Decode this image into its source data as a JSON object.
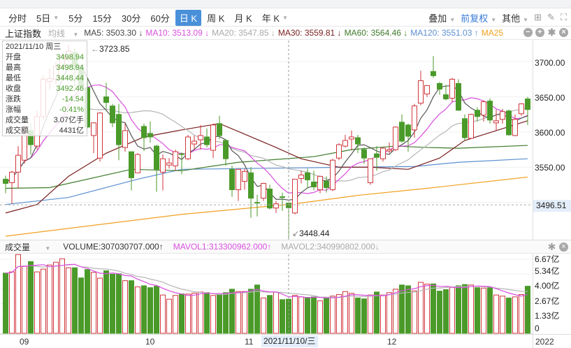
{
  "toolbar": {
    "tabs": [
      {
        "label": "分时"
      },
      {
        "label": "5日",
        "dropdown": true
      },
      {
        "label": "5分"
      },
      {
        "label": "15分"
      },
      {
        "label": "30分"
      },
      {
        "label": "60分"
      },
      {
        "label": "日 K",
        "active": true
      },
      {
        "label": "周 K"
      },
      {
        "label": "月 K"
      },
      {
        "label": "年 K",
        "dropdown": true
      }
    ],
    "overlay": "叠加",
    "adjust": "前复权",
    "other": "其他"
  },
  "legend": {
    "index_name": "上证指数",
    "ma_selector": "均线",
    "ma5": "MA5: 3503.30 ↓",
    "ma10": "MA10: 3513.09 ↓",
    "ma20": "MA20: 3547.85 ↓",
    "ma30": "MA30: 3559.81 ↓",
    "ma60": "MA60: 3564.46 ↓",
    "ma120": "MA120: 3551.03 ↑",
    "ma250": "MA25"
  },
  "tooltip": {
    "date": "2021/11/10 周三",
    "rows": [
      {
        "label": "开盘",
        "value": "3498.94"
      },
      {
        "label": "最高",
        "value": "3498.94"
      },
      {
        "label": "最低",
        "value": "3448.44"
      },
      {
        "label": "收盘",
        "value": "3492.46"
      },
      {
        "label": "涨跌",
        "value": "-14.54"
      },
      {
        "label": "涨幅",
        "value": "-0.41%"
      },
      {
        "label": "成交量",
        "value": "3.07亿手"
      },
      {
        "label": "成交额",
        "value": "4431亿"
      }
    ]
  },
  "volume_header": {
    "name": "成交量",
    "volume": "VOLUME:307030707.000↑",
    "mavol1": "MAVOL1:313300962.000↑",
    "mavol2": "MAVOL2:340990802.000↓"
  },
  "crosshair": {
    "price": "3496.51",
    "date": "2021/11/10/三",
    "index": 45
  },
  "markers": {
    "high": "3723.85",
    "low": "3448.44"
  },
  "colors": {
    "up": "#d0353b",
    "down": "#4a9a2a",
    "ma5": "#555555",
    "ma10": "#d94fdf",
    "ma20": "#b5b5b5",
    "ma30": "#7a1e1e",
    "ma60": "#3d7a2a",
    "ma120": "#5b8fd0",
    "ma250": "#f0a020"
  },
  "chart_data": {
    "type": "candlestick",
    "title": "上证指数 日K",
    "ylim": [
      3450,
      3730
    ],
    "price_ticks": [
      "3700.00",
      "3650.00",
      "3600.00",
      "3550.00"
    ],
    "volume_ticks": [
      "6.67亿",
      "5.34亿",
      "4.00亿",
      "2.67亿",
      "1.33亿",
      "0"
    ],
    "volume_ylim": [
      0,
      7.17
    ],
    "date_labels": [
      {
        "label": "09",
        "index": 3
      },
      {
        "label": "10",
        "index": 23
      },
      {
        "label": "11",
        "index": 39
      },
      {
        "label": "12",
        "index": 61
      },
      {
        "label": "2022",
        "index": 85
      }
    ],
    "ohlc": [
      [
        3533,
        3538,
        3513,
        3527
      ],
      [
        3528,
        3545,
        3498,
        3543
      ],
      [
        3543,
        3580,
        3520,
        3567
      ],
      [
        3560,
        3610,
        3555,
        3597
      ],
      [
        3602,
        3612,
        3568,
        3582
      ],
      [
        3580,
        3630,
        3575,
        3622
      ],
      [
        3622,
        3680,
        3618,
        3675
      ],
      [
        3672,
        3690,
        3660,
        3676
      ],
      [
        3675,
        3700,
        3668,
        3693
      ],
      [
        3693,
        3712,
        3688,
        3708
      ],
      [
        3705,
        3723.85,
        3700,
        3715
      ],
      [
        3713,
        3718,
        3665,
        3690
      ],
      [
        3690,
        3695,
        3660,
        3665
      ],
      [
        3663,
        3677,
        3605,
        3607
      ],
      [
        3595,
        3614,
        3570,
        3613
      ],
      [
        3563,
        3628,
        3558,
        3627
      ],
      [
        3650,
        3670,
        3633,
        3642
      ],
      [
        3637,
        3640,
        3607,
        3613
      ],
      [
        3625,
        3640,
        3560,
        3582
      ],
      [
        3578,
        3612,
        3572,
        3602
      ],
      [
        3572,
        3572,
        3517,
        3535
      ],
      [
        3542,
        3570,
        3542,
        3568
      ],
      [
        3608,
        3612,
        3573,
        3592
      ],
      [
        3598,
        3615,
        3585,
        3593
      ],
      [
        3580,
        3582,
        3515,
        3547
      ],
      [
        3543,
        3568,
        3517,
        3562
      ],
      [
        3553,
        3563,
        3548,
        3556
      ],
      [
        3552,
        3575,
        3545,
        3572
      ],
      [
        3569,
        3571,
        3540,
        3568
      ],
      [
        3562,
        3596,
        3560,
        3593
      ],
      [
        3583,
        3595,
        3575,
        3587
      ],
      [
        3589,
        3610,
        3575,
        3595
      ],
      [
        3593,
        3605,
        3578,
        3582
      ],
      [
        3574,
        3612,
        3563,
        3610
      ],
      [
        3612,
        3623,
        3590,
        3595
      ],
      [
        3588,
        3590,
        3552,
        3562
      ],
      [
        3547,
        3552,
        3508,
        3518
      ],
      [
        3518,
        3547,
        3502,
        3547
      ],
      [
        3530,
        3548,
        3518,
        3544
      ],
      [
        3542,
        3550,
        3478,
        3506
      ],
      [
        3500,
        3511,
        3480,
        3499
      ],
      [
        3506,
        3528,
        3502,
        3527
      ],
      [
        3519,
        3525,
        3490,
        3492
      ],
      [
        3492,
        3502,
        3485,
        3498
      ],
      [
        3508,
        3514,
        3488,
        3507
      ],
      [
        3498.94,
        3498.94,
        3448.44,
        3492.46
      ],
      [
        3485,
        3533,
        3483,
        3533
      ],
      [
        3534,
        3545,
        3527,
        3539
      ],
      [
        3542,
        3548,
        3520,
        3532
      ],
      [
        3529,
        3545,
        3517,
        3522
      ],
      [
        3518,
        3538,
        3513,
        3537
      ],
      [
        3530,
        3537,
        3514,
        3521
      ],
      [
        3518,
        3562,
        3516,
        3560
      ],
      [
        3563,
        3584,
        3560,
        3582
      ],
      [
        3580,
        3596,
        3578,
        3588
      ],
      [
        3590,
        3602,
        3574,
        3593
      ],
      [
        3592,
        3596,
        3570,
        3583
      ],
      [
        3575,
        3578,
        3555,
        3563
      ],
      [
        3528,
        3562,
        3525,
        3562
      ],
      [
        3569,
        3580,
        3545,
        3564
      ],
      [
        3562,
        3578,
        3558,
        3577
      ],
      [
        3573,
        3585,
        3570,
        3575
      ],
      [
        3575,
        3608,
        3573,
        3607
      ],
      [
        3614,
        3625,
        3585,
        3587
      ],
      [
        3610,
        3612,
        3572,
        3594
      ],
      [
        3603,
        3640,
        3592,
        3637
      ],
      [
        3641,
        3687,
        3638,
        3673
      ],
      [
        3654,
        3666,
        3650,
        3666
      ],
      [
        3686,
        3708,
        3677,
        3680
      ],
      [
        3669,
        3671,
        3653,
        3661
      ],
      [
        3653,
        3667,
        3645,
        3647
      ],
      [
        3648,
        3677,
        3643,
        3675
      ],
      [
        3669,
        3675,
        3630,
        3631
      ],
      [
        3619,
        3625,
        3588,
        3592
      ],
      [
        3591,
        3626,
        3590,
        3625
      ],
      [
        3631,
        3635,
        3615,
        3622
      ],
      [
        3624,
        3645,
        3615,
        3643
      ],
      [
        3644,
        3648,
        3612,
        3617
      ],
      [
        3613,
        3632,
        3602,
        3616
      ],
      [
        3618,
        3633,
        3612,
        3629
      ],
      [
        3630,
        3632,
        3595,
        3596
      ],
      [
        3595,
        3625,
        3594,
        3618
      ],
      [
        3626,
        3641,
        3623,
        3640
      ],
      [
        3647,
        3650,
        3610,
        3632
      ]
    ],
    "volume_yi": [
      5.42,
      5.53,
      7.09,
      6.05,
      6.46,
      5.53,
      5.78,
      6.15,
      6.4,
      6.71,
      5.9,
      5.9,
      4.99,
      5.74,
      5.49,
      4.97,
      5.63,
      5.32,
      5.36,
      4.74,
      4.74,
      4.18,
      4.28,
      4.11,
      4.24,
      3.45,
      3.07,
      3.41,
      3.55,
      3.53,
      3.62,
      3.72,
      3.66,
      3.41,
      3.49,
      3.66,
      3.97,
      3.76,
      3.76,
      3.97,
      4.35,
      3.18,
      3.41,
      3.7,
      3.03,
      3.07,
      3.41,
      3.28,
      3.24,
      3.28,
      2.93,
      3.18,
      3.35,
      3.49,
      3.76,
      3.6,
      3.18,
      3.1,
      3.45,
      3.72,
      3.45,
      3.66,
      3.97,
      4.35,
      4.28,
      3.82,
      4.59,
      4.43,
      4.45,
      3.8,
      3.93,
      4.14,
      4.28,
      4.39,
      4.35,
      4.11,
      4.07,
      4.11,
      3.45,
      3.35,
      3.18,
      3.28,
      3.49,
      4.24
    ],
    "ma_long": {
      "ma30": [
        [
          0,
          3485
        ],
        [
          5,
          3497
        ],
        [
          10,
          3537
        ],
        [
          16,
          3570
        ],
        [
          22,
          3593
        ],
        [
          28,
          3603
        ],
        [
          34,
          3612
        ],
        [
          38,
          3597
        ],
        [
          43,
          3578
        ],
        [
          47,
          3562
        ],
        [
          53,
          3550
        ],
        [
          58,
          3550
        ],
        [
          64,
          3547
        ],
        [
          69,
          3563
        ],
        [
          73,
          3588
        ],
        [
          78,
          3602
        ],
        [
          83,
          3616
        ]
      ],
      "ma60": [
        [
          0,
          3520
        ],
        [
          7,
          3521
        ],
        [
          20,
          3547
        ],
        [
          28,
          3545
        ],
        [
          37,
          3557
        ],
        [
          49,
          3565
        ],
        [
          55,
          3575
        ],
        [
          62,
          3580
        ],
        [
          67,
          3578
        ],
        [
          72,
          3577
        ],
        [
          83,
          3581
        ]
      ],
      "ma120": [
        [
          0,
          3497
        ],
        [
          10,
          3507
        ],
        [
          21,
          3533
        ],
        [
          28,
          3547
        ],
        [
          37,
          3548
        ],
        [
          55,
          3550
        ],
        [
          65,
          3551
        ],
        [
          72,
          3557
        ],
        [
          83,
          3562
        ]
      ],
      "ma250": [
        [
          0,
          3452
        ],
        [
          28,
          3483
        ],
        [
          46,
          3498
        ],
        [
          56,
          3510
        ],
        [
          67,
          3520
        ],
        [
          83,
          3536
        ]
      ]
    }
  }
}
